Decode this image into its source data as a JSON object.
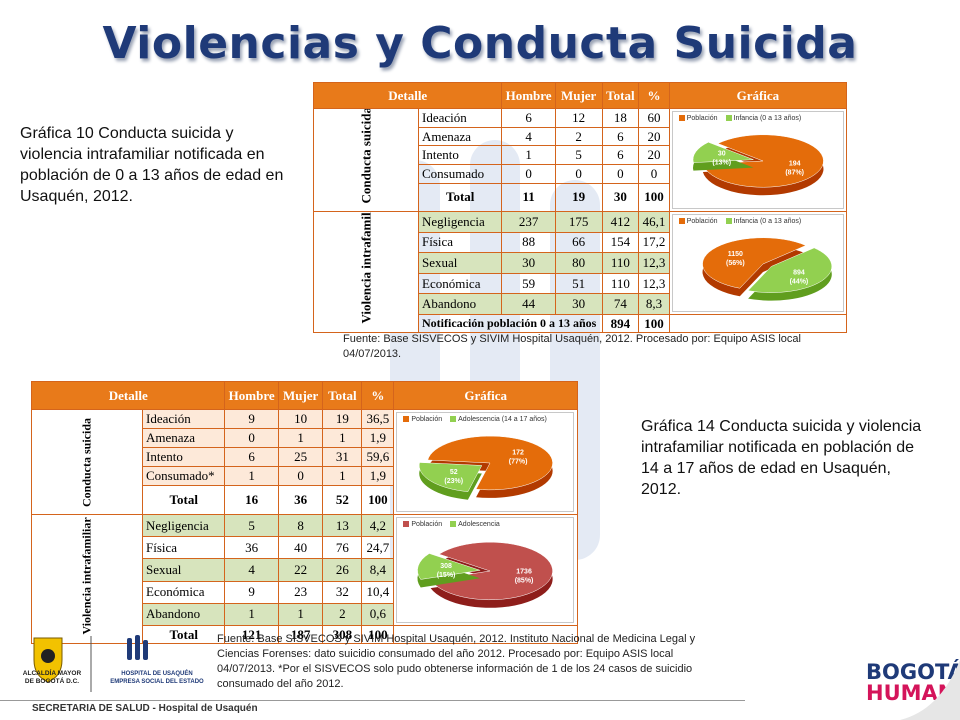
{
  "title": "Violencias y Conducta Suicida",
  "caption_top": "Gráfica 10 Conducta suicida y violencia intrafamiliar notificada en población de 0 a 13 años de edad en Usaquén, 2012.",
  "caption_bottom": "Gráfica 14 Conducta suicida y violencia intrafamiliar notificada en población de 14 a 17 años de edad en Usaquén, 2012.",
  "source_top": "Fuente: Base SISVECOS y SIVIM Hospital Usaquén, 2012. Procesado por: Equipo ASIS local 04/07/2013.",
  "source_bottom": "Fuente: Base SISVECOS y SIVIM Hospital Usaquén, 2012. Instituto Nacional de Medicina Legal y Ciencias Forenses: dato suicidio consumado del año 2012. Procesado por: Equipo ASIS local 04/07/2013. *Por el SISVECOS solo pudo obtenerse información de 1 de los 24 casos de suicidio consumado del año 2012.",
  "headers": {
    "detalle": "Detalle",
    "hombre": "Hombre",
    "mujer": "Mujer",
    "total": "Total",
    "pct": "%",
    "grafica": "Gráfica"
  },
  "table1": {
    "group_suicida": "Conducta suicida",
    "group_violencia": "Violencia intrafamiliar",
    "suicida_rows": [
      {
        "label": "Ideación",
        "hombre": "6",
        "mujer": "12",
        "total": "18",
        "pct": "60"
      },
      {
        "label": "Amenaza",
        "hombre": "4",
        "mujer": "2",
        "total": "6",
        "pct": "20"
      },
      {
        "label": "Intento",
        "hombre": "1",
        "mujer": "5",
        "total": "6",
        "pct": "20"
      },
      {
        "label": "Consumado",
        "hombre": "0",
        "mujer": "0",
        "total": "0",
        "pct": "0"
      }
    ],
    "suicida_total": {
      "label": "Total",
      "hombre": "11",
      "mujer": "19",
      "total": "30",
      "pct": "100"
    },
    "violencia_rows": [
      {
        "label": "Negligencia",
        "hombre": "237",
        "mujer": "175",
        "total": "412",
        "pct": "46,1"
      },
      {
        "label": "Física",
        "hombre": "88",
        "mujer": "66",
        "total": "154",
        "pct": "17,2"
      },
      {
        "label": "Sexual",
        "hombre": "30",
        "mujer": "80",
        "total": "110",
        "pct": "12,3"
      },
      {
        "label": "Económica",
        "hombre": "59",
        "mujer": "51",
        "total": "110",
        "pct": "12,3"
      },
      {
        "label": "Abandono",
        "hombre": "44",
        "mujer": "30",
        "total": "74",
        "pct": "8,3"
      }
    ],
    "violencia_total": {
      "label": "Notificación población 0 a 13 años",
      "total": "894",
      "pct": "100"
    }
  },
  "table2": {
    "group_suicida": "Conducta suicida",
    "group_violencia": "Violencia intrafamiliar",
    "suicida_rows": [
      {
        "label": "Ideación",
        "hombre": "9",
        "mujer": "10",
        "total": "19",
        "pct": "36,5"
      },
      {
        "label": "Amenaza",
        "hombre": "0",
        "mujer": "1",
        "total": "1",
        "pct": "1,9"
      },
      {
        "label": "Intento",
        "hombre": "6",
        "mujer": "25",
        "total": "31",
        "pct": "59,6"
      },
      {
        "label": "Consumado*",
        "hombre": "1",
        "mujer": "0",
        "total": "1",
        "pct": "1,9"
      }
    ],
    "suicida_total": {
      "label": "Total",
      "hombre": "16",
      "mujer": "36",
      "total": "52",
      "pct": "100"
    },
    "violencia_rows": [
      {
        "label": "Negligencia",
        "hombre": "5",
        "mujer": "8",
        "total": "13",
        "pct": "4,2"
      },
      {
        "label": "Física",
        "hombre": "36",
        "mujer": "40",
        "total": "76",
        "pct": "24,7"
      },
      {
        "label": "Sexual",
        "hombre": "4",
        "mujer": "22",
        "total": "26",
        "pct": "8,4"
      },
      {
        "label": "Económica",
        "hombre": "9",
        "mujer": "23",
        "total": "32",
        "pct": "10,4"
      },
      {
        "label": "Abandono",
        "hombre": "1",
        "mujer": "1",
        "total": "2",
        "pct": "0,6"
      }
    ],
    "violencia_total": {
      "label": "Total",
      "hombre": "121",
      "mujer": "187",
      "total": "308",
      "pct": "100"
    }
  },
  "chart_data": [
    {
      "type": "pie",
      "legend": [
        "Población",
        "Infancia (0 a 13 años)"
      ],
      "values": [
        194,
        30
      ],
      "labels": [
        "194\n(87%)",
        "30\n(13%)"
      ],
      "colors": [
        "#e46c0a",
        "#92d050"
      ]
    },
    {
      "type": "pie",
      "legend": [
        "Población",
        "Infancia (0 a 13 años)"
      ],
      "values": [
        1150,
        894
      ],
      "labels": [
        "1150\n(56%)",
        "894\n(44%)"
      ],
      "colors": [
        "#e46c0a",
        "#92d050"
      ]
    },
    {
      "type": "pie",
      "legend": [
        "Población",
        "Adolescencia (14 a 17 años)"
      ],
      "values": [
        172,
        52
      ],
      "labels": [
        "172\n(77%)",
        "52\n(23%)"
      ],
      "colors": [
        "#e46c0a",
        "#92d050"
      ]
    },
    {
      "type": "pie",
      "legend": [
        "Población",
        "Adolescencia"
      ],
      "values": [
        1736,
        308
      ],
      "labels": [
        "1736\n(85%)",
        "308\n(15%)"
      ],
      "colors": [
        "#c0504d",
        "#92d050"
      ]
    }
  ],
  "footer": {
    "org_left_1": "ALCALDÍA MAYOR",
    "org_left_2": "DE BOGOTÁ D.C.",
    "hospital_1": "HOSPITAL DE USAQUÉN",
    "hospital_2": "EMPRESA SOCIAL DEL ESTADO",
    "secretaria": "SECRETARIA DE SALUD - Hospital de Usaquén",
    "bogota_1": "BOGOTÁ",
    "bogota_2": "HUMANA"
  }
}
